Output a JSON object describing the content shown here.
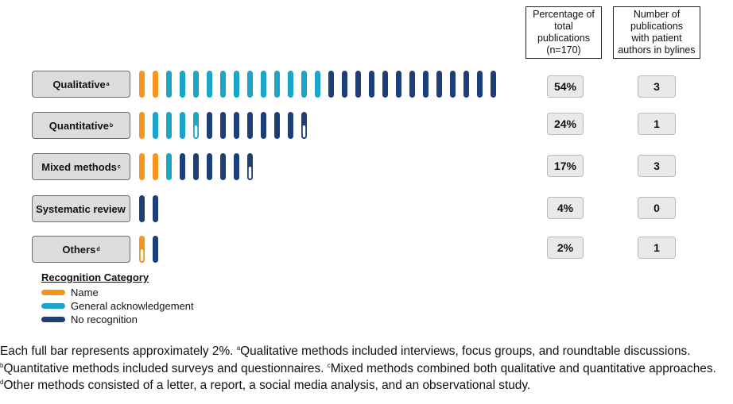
{
  "headers": {
    "percentage": "Percentage of\ntotal\npublications\n(n=170)",
    "number": "Number of\npublications\nwith patient\nauthors in bylines"
  },
  "colors": {
    "name": "#f7941d",
    "general_acknowledgement": "#1ba5c9",
    "no_recognition": "#1d3f78",
    "partial_fill": "#ffffff"
  },
  "legend": {
    "title": "Recognition Category",
    "items": [
      {
        "label": "Name",
        "color": "#f7941d"
      },
      {
        "label": "General acknowledgement",
        "color": "#1ba5c9"
      },
      {
        "label": "No recognition",
        "color": "#1d3f78"
      }
    ]
  },
  "chart_data": {
    "type": "bar",
    "unit_note": "each full bar ≈ 2% of publications",
    "categories": [
      {
        "label": "Qualitative",
        "sup": "a",
        "percentage": "54%",
        "patient_author_pubs": "3",
        "name_bars": 2,
        "general_bars": 12,
        "no_recognition_bars": 13,
        "partial_last": false
      },
      {
        "label": "Quantitative",
        "sup": "b",
        "percentage": "24%",
        "patient_author_pubs": "1",
        "name_bars": 1,
        "general_bars": 3.5,
        "no_recognition_bars": 7.5,
        "partial_last": true
      },
      {
        "label": "Mixed methods",
        "sup": "c",
        "percentage": "17%",
        "patient_author_pubs": "3",
        "name_bars": 2,
        "general_bars": 1,
        "no_recognition_bars": 5.5,
        "partial_last": true
      },
      {
        "label": "Systematic review",
        "sup": "",
        "percentage": "4%",
        "patient_author_pubs": "0",
        "name_bars": 0,
        "general_bars": 0,
        "no_recognition_bars": 2,
        "partial_last": false
      },
      {
        "label": "Others",
        "sup": "d",
        "percentage": "2%",
        "patient_author_pubs": "1",
        "name_bars": 0.5,
        "general_bars": 0,
        "no_recognition_bars": 1,
        "partial_last": false
      }
    ]
  },
  "footnote": {
    "intro": "Each full bar represents approximately 2%. ",
    "a_sup": "a",
    "a_text": "Qualitative methods included interviews, focus groups, and roundtable discussions. ",
    "b_sup": "b",
    "b_text": "Quantitative methods included surveys and questionnaires. ",
    "c_sup": "c",
    "c_text": "Mixed methods combined both qualitative and quantitative approaches. ",
    "d_sup": "d",
    "d_text": "Other methods consisted of a letter, a report, a social media analysis, and an observational study."
  }
}
